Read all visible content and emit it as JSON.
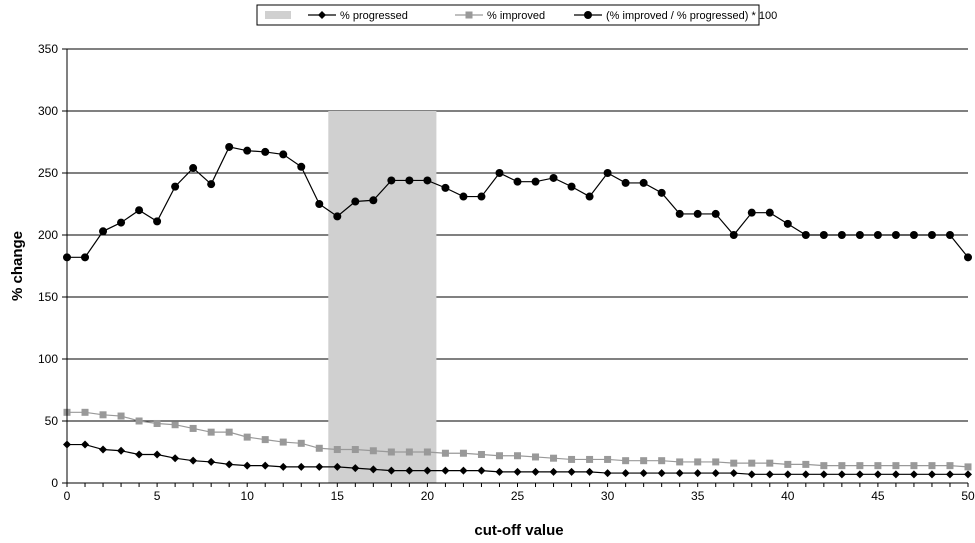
{
  "chart_data": {
    "type": "line",
    "xlabel": "cut-off value",
    "ylabel": "% change",
    "xlim": [
      0,
      50
    ],
    "ylim": [
      0,
      350
    ],
    "x_ticks": [
      0,
      5,
      10,
      15,
      20,
      25,
      30,
      35,
      40,
      45,
      50
    ],
    "y_ticks": [
      0,
      50,
      100,
      150,
      200,
      250,
      300,
      350
    ],
    "grid": "horizontal",
    "legend_position": "top-center",
    "shaded_region": {
      "x_start": 14.5,
      "x_end": 20.5,
      "y_top": 300,
      "color": "#d0d0d0"
    },
    "x": [
      0,
      1,
      2,
      3,
      4,
      5,
      6,
      7,
      8,
      9,
      10,
      11,
      12,
      13,
      14,
      15,
      16,
      17,
      18,
      19,
      20,
      21,
      22,
      23,
      24,
      25,
      26,
      27,
      28,
      29,
      30,
      31,
      32,
      33,
      34,
      35,
      36,
      37,
      38,
      39,
      40,
      41,
      42,
      43,
      44,
      45,
      46,
      47,
      48,
      49,
      50
    ],
    "series": [
      {
        "name": "% progressed",
        "marker": "diamond",
        "color": "#000000",
        "values": [
          31,
          31,
          27,
          26,
          23,
          23,
          20,
          18,
          17,
          15,
          14,
          14,
          13,
          13,
          13,
          13,
          12,
          11,
          10,
          10,
          10,
          10,
          10,
          10,
          9,
          9,
          9,
          9,
          9,
          9,
          8,
          8,
          8,
          8,
          8,
          8,
          8,
          8,
          7,
          7,
          7,
          7,
          7,
          7,
          7,
          7,
          7,
          7,
          7,
          7,
          7
        ]
      },
      {
        "name": "% improved",
        "marker": "square",
        "color": "#999999",
        "values": [
          57,
          57,
          55,
          54,
          50,
          48,
          47,
          44,
          41,
          41,
          37,
          35,
          33,
          32,
          28,
          27,
          27,
          26,
          25,
          25,
          25,
          24,
          24,
          23,
          22,
          22,
          21,
          20,
          19,
          19,
          19,
          18,
          18,
          18,
          17,
          17,
          17,
          16,
          16,
          16,
          15,
          15,
          14,
          14,
          14,
          14,
          14,
          14,
          14,
          14,
          13
        ]
      },
      {
        "name": "(% improved / % progressed) * 100",
        "marker": "circle",
        "color": "#000000",
        "values": [
          182,
          182,
          203,
          210,
          220,
          211,
          239,
          254,
          241,
          271,
          268,
          267,
          265,
          255,
          225,
          215,
          227,
          228,
          244,
          244,
          244,
          238,
          231,
          231,
          250,
          243,
          243,
          246,
          239,
          231,
          250,
          242,
          242,
          234,
          217,
          217,
          217,
          200,
          218,
          218,
          209,
          200,
          200,
          200,
          200,
          200,
          200,
          200,
          200,
          200,
          182
        ]
      }
    ]
  }
}
